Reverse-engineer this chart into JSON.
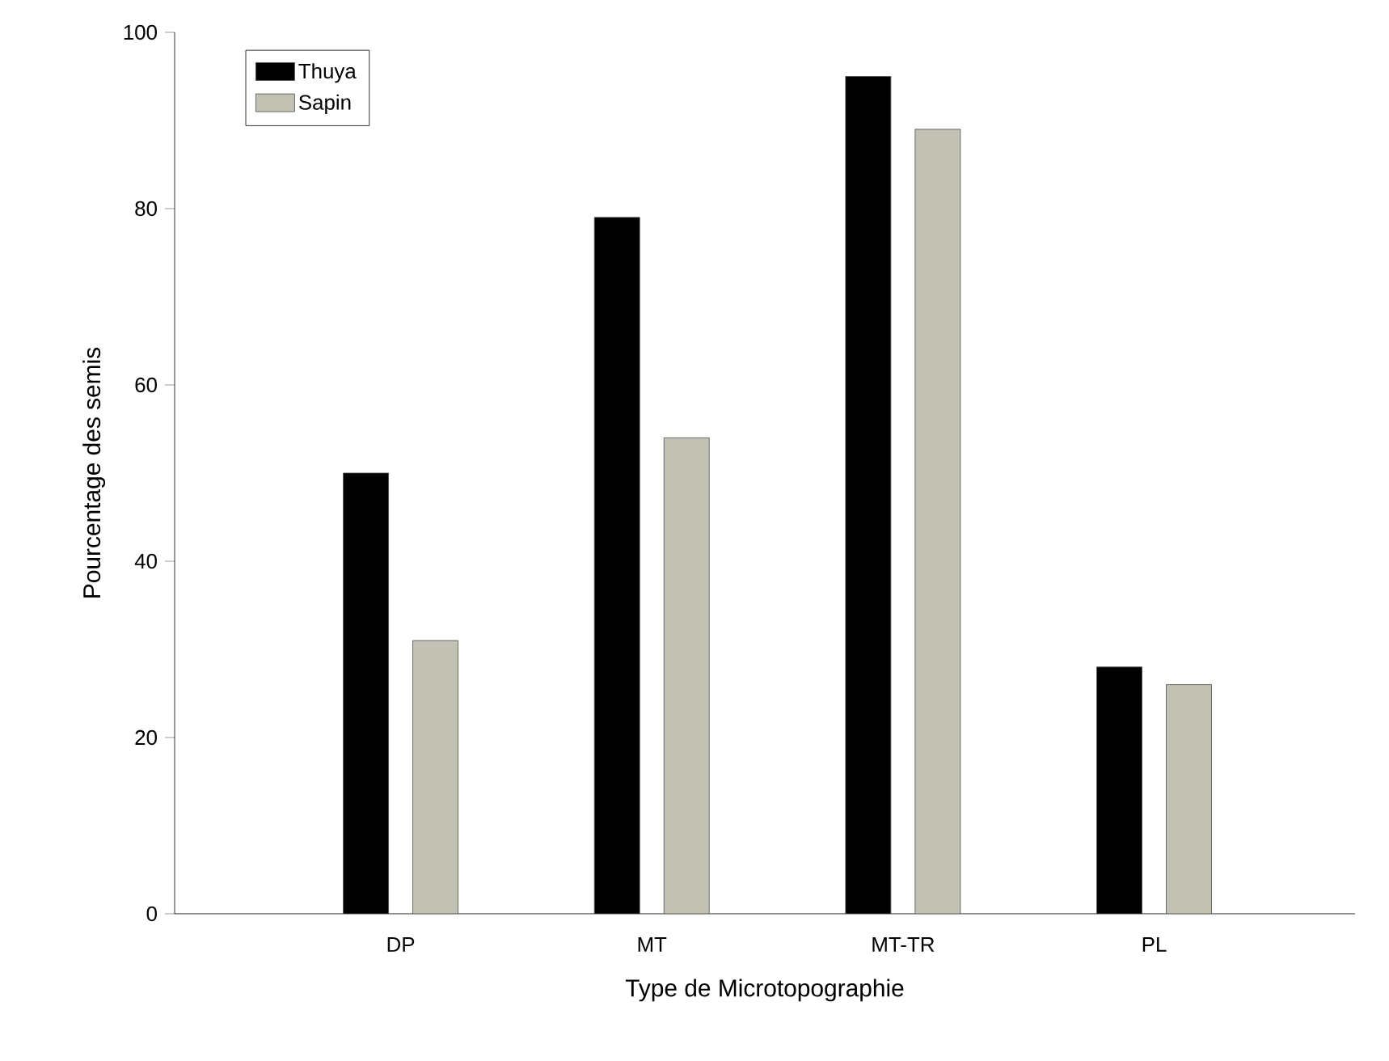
{
  "chart_data": {
    "type": "bar",
    "xlabel": "Type de Microtopographie",
    "ylabel": "Pourcentage des semis",
    "categories": [
      "DP",
      "MT",
      "MT-TR",
      "PL"
    ],
    "series": [
      {
        "name": "Thuya",
        "color": "#000000",
        "values": [
          50,
          79,
          95,
          28
        ]
      },
      {
        "name": "Sapin",
        "color": "#c2c2b4",
        "values": [
          31,
          54,
          89,
          26
        ]
      }
    ],
    "ylim": [
      0,
      100
    ],
    "yticks": [
      0,
      20,
      40,
      60,
      80,
      100
    ],
    "grid": false,
    "legend": "top left"
  }
}
